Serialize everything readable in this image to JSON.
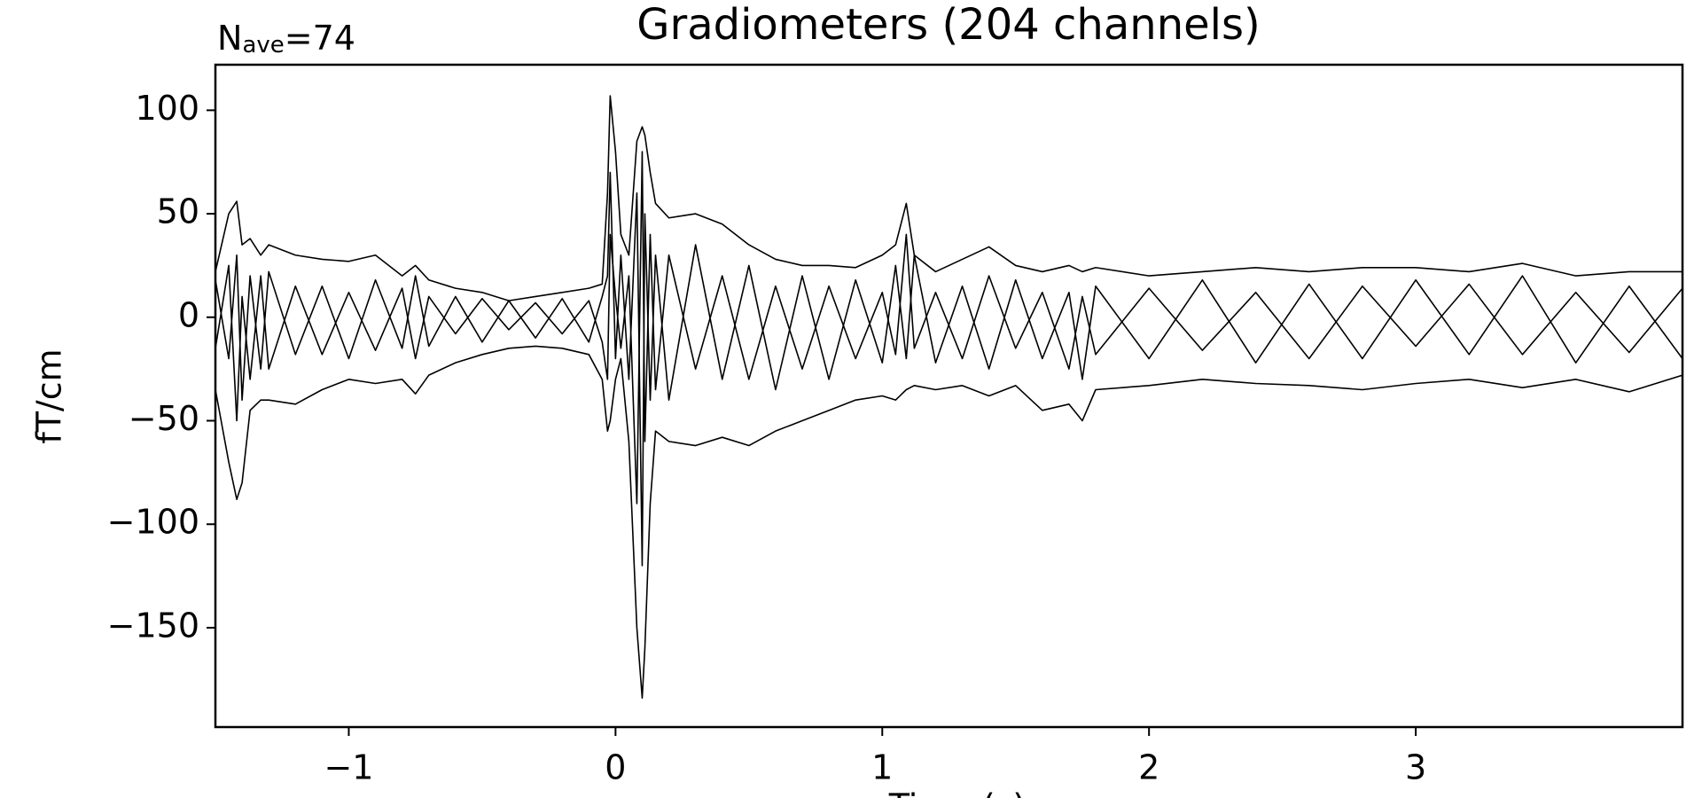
{
  "chart_data": {
    "type": "line",
    "title": "Gradiometers (204 channels)",
    "annotation": {
      "base": "N",
      "sub": "ave",
      "rest": "=74"
    },
    "x_label": "Time (s)",
    "y_label": "fT/cm",
    "xlim": [
      -1.5,
      4.0
    ],
    "ylim": [
      -198,
      122
    ],
    "xticks": [
      {
        "value": -1,
        "label": "−1"
      },
      0,
      1,
      2,
      3
    ],
    "yticks": [
      {
        "value": -150,
        "label": "−150"
      },
      {
        "value": -100,
        "label": "−100"
      },
      {
        "value": -50,
        "label": "−50"
      },
      0,
      50,
      100
    ],
    "grid": false,
    "x": [
      -1.5,
      -1.45,
      -1.42,
      -1.4,
      -1.37,
      -1.33,
      -1.3,
      -1.2,
      -1.1,
      -1.0,
      -0.9,
      -0.8,
      -0.75,
      -0.7,
      -0.6,
      -0.5,
      -0.4,
      -0.3,
      -0.2,
      -0.1,
      -0.05,
      -0.03,
      -0.02,
      0.0,
      0.02,
      0.05,
      0.08,
      0.1,
      0.11,
      0.13,
      0.15,
      0.2,
      0.3,
      0.4,
      0.5,
      0.6,
      0.7,
      0.8,
      0.9,
      1.0,
      1.05,
      1.09,
      1.12,
      1.2,
      1.3,
      1.4,
      1.5,
      1.6,
      1.7,
      1.75,
      1.8,
      2.0,
      2.2,
      2.4,
      2.6,
      2.8,
      3.0,
      3.2,
      3.4,
      3.6,
      3.8,
      4.0
    ],
    "series": [
      {
        "color": "#000000",
        "values": [
          22,
          50,
          56,
          35,
          38,
          30,
          35,
          30,
          28,
          27,
          30,
          20,
          25,
          18,
          14,
          12,
          8,
          10,
          12,
          14,
          16,
          60,
          107,
          80,
          40,
          30,
          85,
          92,
          88,
          70,
          55,
          48,
          50,
          45,
          35,
          28,
          25,
          25,
          24,
          30,
          35,
          55,
          30,
          22,
          28,
          34,
          25,
          22,
          25,
          22,
          24,
          20,
          22,
          24,
          22,
          24,
          24,
          22,
          26,
          20,
          22,
          22
        ]
      },
      {
        "color": "#000000",
        "values": [
          -35,
          -70,
          -88,
          -80,
          -45,
          -40,
          -40,
          -42,
          -35,
          -30,
          -32,
          -30,
          -37,
          -28,
          -22,
          -18,
          -15,
          -14,
          -15,
          -18,
          -30,
          -55,
          -50,
          -30,
          -20,
          -60,
          -150,
          -184,
          -160,
          -90,
          -55,
          -60,
          -62,
          -58,
          -62,
          -55,
          -50,
          -45,
          -40,
          -38,
          -40,
          -35,
          -33,
          -35,
          -33,
          -38,
          -33,
          -45,
          -42,
          -50,
          -35,
          -33,
          -30,
          -32,
          -33,
          -35,
          -32,
          -30,
          -34,
          -30,
          -36,
          -28
        ]
      },
      {
        "color": "#000000",
        "values": [
          18,
          -20,
          30,
          -40,
          20,
          -25,
          22,
          -18,
          15,
          -20,
          18,
          -15,
          20,
          -14,
          10,
          -12,
          8,
          -10,
          9,
          -12,
          10,
          20,
          70,
          -20,
          30,
          -30,
          60,
          -120,
          50,
          -40,
          30,
          -40,
          35,
          -30,
          25,
          -35,
          20,
          -30,
          18,
          -22,
          25,
          -20,
          30,
          -22,
          15,
          -25,
          18,
          -20,
          12,
          -30,
          15,
          -20,
          18,
          -22,
          16,
          -20,
          18,
          -18,
          20,
          -22,
          15,
          -20
        ]
      },
      {
        "color": "#000000",
        "values": [
          -15,
          25,
          -50,
          10,
          -30,
          20,
          -25,
          15,
          -18,
          12,
          -16,
          14,
          -20,
          10,
          -8,
          9,
          -6,
          7,
          -8,
          8,
          -12,
          -30,
          40,
          10,
          -15,
          20,
          -90,
          80,
          -60,
          40,
          -35,
          30,
          -25,
          20,
          -30,
          15,
          -25,
          15,
          -20,
          12,
          -18,
          40,
          -15,
          12,
          -20,
          20,
          -15,
          12,
          -25,
          10,
          -18,
          14,
          -16,
          12,
          -20,
          15,
          -14,
          16,
          -18,
          12,
          -17,
          14
        ]
      }
    ]
  }
}
